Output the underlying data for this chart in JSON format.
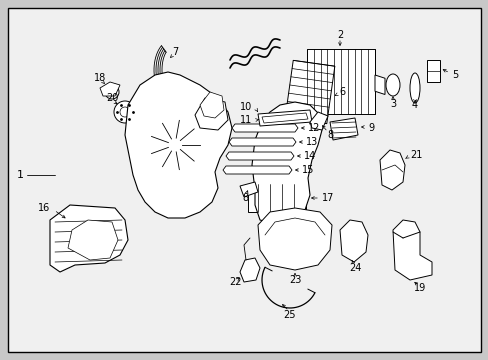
{
  "bg_color": "#c8c8c8",
  "inner_bg": "#f0f0f0",
  "border_color": "#000000",
  "line_color": "#000000",
  "label_color": "#000000",
  "fig_width": 4.89,
  "fig_height": 3.6,
  "dpi": 100,
  "font_size": 7.0
}
